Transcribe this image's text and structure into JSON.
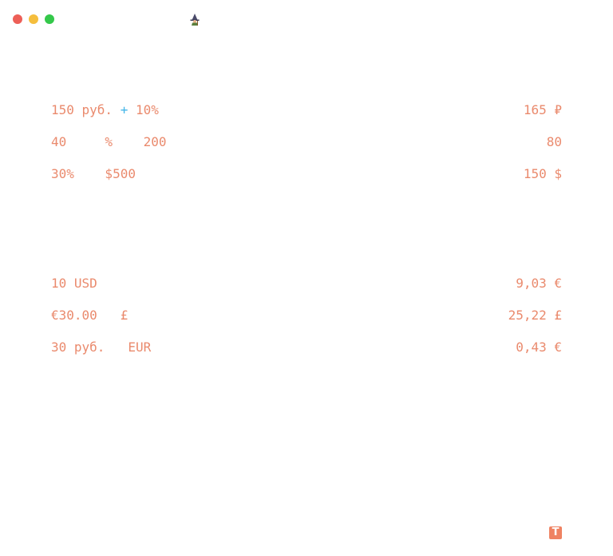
{
  "window": {
    "controls": [
      "close",
      "minimize",
      "zoom"
    ]
  },
  "header": {
    "icon": "wizard-icon"
  },
  "calculations": [
    {
      "expr_parts": [
        "150 руб. ",
        "+",
        " 10%"
      ],
      "result": "165 ₽"
    },
    {
      "expr": "40     %    200",
      "result": "80"
    },
    {
      "expr": "30%    $500",
      "result": "150 $"
    },
    {
      "expr": "10 USD",
      "result": "9,03 €"
    },
    {
      "expr": "€30.00   £",
      "result": "25,22 £"
    },
    {
      "expr": "30 руб.   EUR",
      "result": "0,43 €"
    }
  ],
  "footer": {
    "icon": "text-format-icon",
    "icon_glyph": "T"
  },
  "colors": {
    "text": "#ea8a6d",
    "operator": "#45b6e8",
    "close": "#ed5f57",
    "minimize": "#f5be3d",
    "zoom": "#34c84a"
  }
}
